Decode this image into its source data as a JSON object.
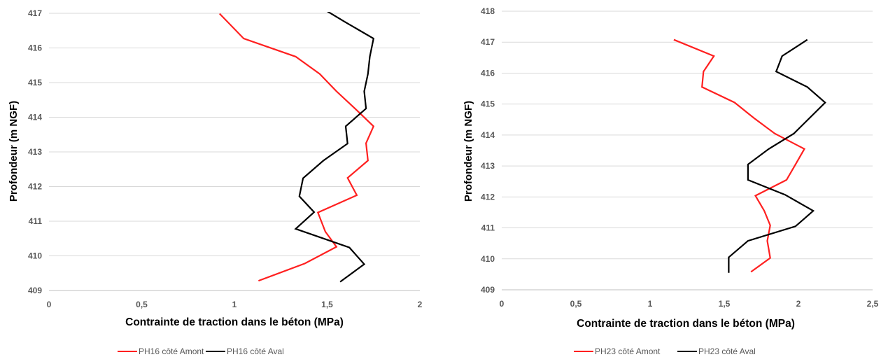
{
  "chart_data": [
    {
      "type": "line",
      "xlabel": "Contrainte de traction dans le béton (MPa)",
      "ylabel": "Profondeur (m NGF)",
      "xlim": [
        0,
        2
      ],
      "ylim": [
        409,
        417
      ],
      "x_ticks": [
        0,
        0.5,
        1,
        1.5,
        2
      ],
      "x_tick_labels": [
        "0",
        "0,5",
        "1",
        "1,5",
        "2"
      ],
      "y_ticks": [
        409,
        410,
        411,
        412,
        413,
        414,
        415,
        416,
        417
      ],
      "grid": "horizontal",
      "legend": "bottom",
      "series": [
        {
          "name": "PH16 côté Amont",
          "color": "#ff2020",
          "points": [
            [
              1.13,
              409.28
            ],
            [
              1.38,
              409.78
            ],
            [
              1.55,
              410.26
            ],
            [
              1.49,
              410.7
            ],
            [
              1.45,
              411.25
            ],
            [
              1.66,
              411.75
            ],
            [
              1.61,
              412.25
            ],
            [
              1.72,
              412.75
            ],
            [
              1.71,
              413.25
            ],
            [
              1.75,
              413.74
            ],
            [
              1.65,
              414.25
            ],
            [
              1.55,
              414.75
            ],
            [
              1.46,
              415.25
            ],
            [
              1.33,
              415.75
            ],
            [
              1.05,
              416.27
            ],
            [
              0.92,
              416.99
            ]
          ]
        },
        {
          "name": "PH16 côté Aval",
          "color": "#000000",
          "points": [
            [
              1.57,
              409.25
            ],
            [
              1.7,
              409.76
            ],
            [
              1.62,
              410.24
            ],
            [
              1.33,
              410.78
            ],
            [
              1.43,
              411.26
            ],
            [
              1.35,
              411.72
            ],
            [
              1.37,
              412.24
            ],
            [
              1.48,
              412.75
            ],
            [
              1.61,
              413.24
            ],
            [
              1.6,
              413.74
            ],
            [
              1.71,
              414.25
            ],
            [
              1.7,
              414.75
            ],
            [
              1.72,
              415.25
            ],
            [
              1.73,
              415.75
            ],
            [
              1.75,
              416.27
            ],
            [
              1.6,
              416.74
            ],
            [
              1.45,
              417.22
            ],
            [
              1.38,
              417.42
            ]
          ]
        }
      ]
    },
    {
      "type": "line",
      "xlabel": "Contrainte de traction dans le béton (MPa)",
      "ylabel": "Profondeur (m NGF)",
      "xlim": [
        0,
        2.5
      ],
      "ylim": [
        409,
        418
      ],
      "x_ticks": [
        0,
        0.5,
        1,
        1.5,
        2,
        2.5
      ],
      "x_tick_labels": [
        "0",
        "0,5",
        "1",
        "1,5",
        "2",
        "2,5"
      ],
      "y_ticks": [
        409,
        410,
        411,
        412,
        413,
        414,
        415,
        416,
        417,
        418
      ],
      "grid": "horizontal",
      "legend": "bottom",
      "series": [
        {
          "name": "PH23 côté Amont",
          "color": "#ff2020",
          "points": [
            [
              1.68,
              409.58
            ],
            [
              1.81,
              410.03
            ],
            [
              1.79,
              410.58
            ],
            [
              1.81,
              411.08
            ],
            [
              1.77,
              411.55
            ],
            [
              1.71,
              412.04
            ],
            [
              1.92,
              412.55
            ],
            [
              1.98,
              413.05
            ],
            [
              2.04,
              413.55
            ],
            [
              1.84,
              414.05
            ],
            [
              1.7,
              414.55
            ],
            [
              1.57,
              415.05
            ],
            [
              1.35,
              415.55
            ],
            [
              1.36,
              416.05
            ],
            [
              1.43,
              416.55
            ],
            [
              1.16,
              417.08
            ]
          ]
        },
        {
          "name": "PH23 côté Aval",
          "color": "#000000",
          "points": [
            [
              1.53,
              409.55
            ],
            [
              1.53,
              410.05
            ],
            [
              1.66,
              410.58
            ],
            [
              1.98,
              411.05
            ],
            [
              2.1,
              411.55
            ],
            [
              1.91,
              412.07
            ],
            [
              1.66,
              412.55
            ],
            [
              1.66,
              413.05
            ],
            [
              1.8,
              413.55
            ],
            [
              1.97,
              414.05
            ],
            [
              2.18,
              415.05
            ],
            [
              2.06,
              415.55
            ],
            [
              1.85,
              416.05
            ],
            [
              1.89,
              416.55
            ],
            [
              2.06,
              417.08
            ]
          ]
        }
      ]
    }
  ]
}
